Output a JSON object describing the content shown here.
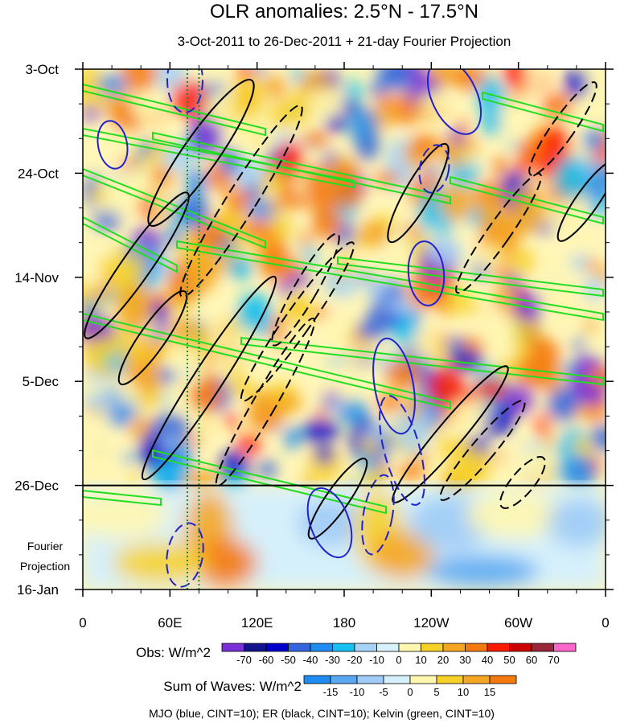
{
  "chart_data": {
    "type": "heatmap",
    "title": "OLR anomalies: 2.5°N - 17.5°N",
    "subtitle": "3-Oct-2011 to 26-Dec-2011 + 21-day Fourier Projection",
    "x_axis": {
      "ticks": [
        "0",
        "60E",
        "120E",
        "180",
        "120W",
        "60W",
        "0"
      ],
      "longitudes": [
        0,
        60,
        120,
        180,
        240,
        300,
        360
      ],
      "range": [
        0,
        360
      ]
    },
    "y_axis": {
      "ticks": [
        "3-Oct",
        "24-Oct",
        "14-Nov",
        "5-Dec",
        "26-Dec",
        "16-Jan"
      ],
      "day_index": [
        0,
        21,
        42,
        63,
        84,
        105
      ],
      "range_days": [
        0,
        105
      ],
      "observation_end_day": 84
    },
    "projection_label": [
      "Fourier",
      "Projection"
    ],
    "obs_colorbar": {
      "label": "Obs: W/m^2",
      "levels": [
        "-70",
        "-60",
        "-50",
        "-40",
        "-30",
        "-20",
        "-10",
        "0",
        "10",
        "20",
        "30",
        "40",
        "50",
        "60",
        "70"
      ],
      "colors": [
        "#7b2fd6",
        "#12128c",
        "#0000cc",
        "#3366dd",
        "#1e8cf0",
        "#17c0f0",
        "#a7d3f7",
        "#d6f2fb",
        "#fff7b0",
        "#f7d12a",
        "#f5a623",
        "#f47a10",
        "#ff1a00",
        "#cc0000",
        "#99263a",
        "#ff66cc"
      ]
    },
    "waves_colorbar": {
      "label": "Sum of Waves: W/m^2",
      "levels": [
        "-15",
        "-10",
        "-5",
        "0",
        "5",
        "10",
        "15"
      ],
      "colors": [
        "#1e8cf0",
        "#5aa8f2",
        "#9fcbf6",
        "#d6f0fb",
        "#fff7b0",
        "#f7d12a",
        "#f5a623",
        "#f47a10"
      ]
    },
    "footnote": "MJO (blue, CINT=10); ER (black, CINT=10); Kelvin (green, CINT=10)",
    "contour_series": [
      {
        "name": "MJO",
        "color": "blue",
        "cint": 10
      },
      {
        "name": "ER",
        "color": "black",
        "cint": 10
      },
      {
        "name": "Kelvin",
        "color": "green",
        "cint": 10
      }
    ],
    "reference_lines_lon": [
      72,
      80
    ]
  }
}
